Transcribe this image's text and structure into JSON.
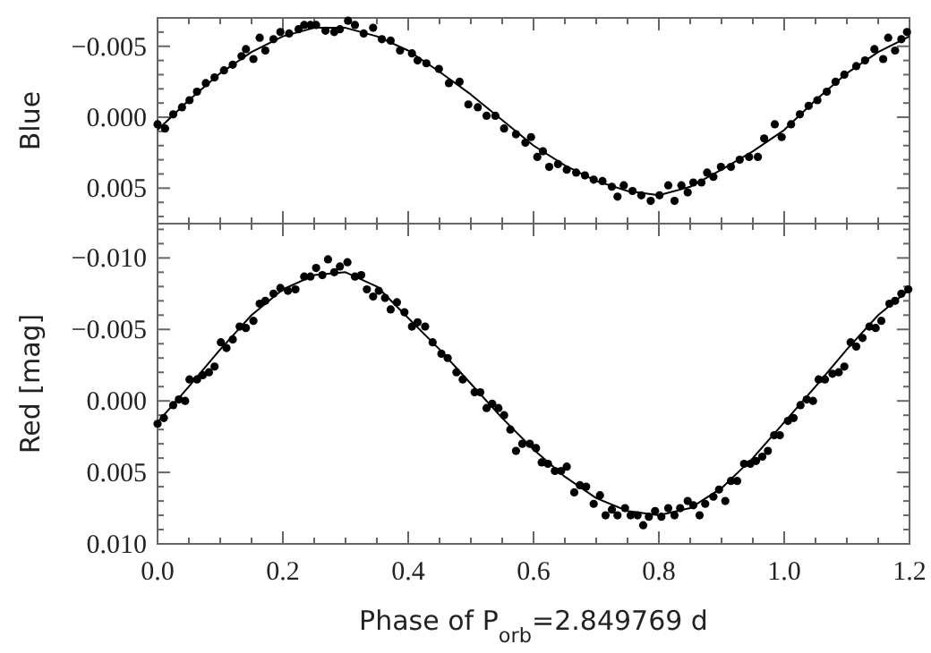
{
  "chart_data": [
    {
      "type": "scatter",
      "ylabel": "Blue",
      "tick_labels": "y",
      "marker": "circle",
      "grid": false,
      "xlim": [
        0,
        1.2
      ],
      "ylim": [
        0.0075,
        -0.007
      ],
      "xticks": [
        0,
        {
          "value": 0.05,
          "label": null
        },
        {
          "value": 0.1,
          "label": null
        },
        {
          "value": 0.15,
          "label": null
        },
        0.2,
        {
          "value": 0.25,
          "label": null
        },
        {
          "value": 0.3,
          "label": null
        },
        {
          "value": 0.35,
          "label": null
        },
        0.4,
        {
          "value": 0.45,
          "label": null
        },
        {
          "value": 0.5,
          "label": null
        },
        {
          "value": 0.55,
          "label": null
        },
        0.6,
        {
          "value": 0.65,
          "label": null
        },
        {
          "value": 0.7,
          "label": null
        },
        {
          "value": 0.75,
          "label": null
        },
        0.8,
        {
          "value": 0.85,
          "label": null
        },
        {
          "value": 0.9,
          "label": null
        },
        {
          "value": 0.95,
          "label": null
        },
        1.0,
        {
          "value": 1.05,
          "label": null
        },
        {
          "value": 1.1,
          "label": null
        },
        {
          "value": 1.15,
          "label": null
        },
        1.2
      ],
      "yticks": [
        {
          "value": -0.007,
          "label": null
        },
        {
          "value": -0.006,
          "label": null
        },
        {
          "value": -0.005,
          "label": "−0.005"
        },
        {
          "value": -0.004,
          "label": null
        },
        {
          "value": -0.003,
          "label": null
        },
        {
          "value": -0.002,
          "label": null
        },
        {
          "value": -0.001,
          "label": null
        },
        {
          "value": 0,
          "label": "0.000"
        },
        {
          "value": 0.001,
          "label": null
        },
        {
          "value": 0.002,
          "label": null
        },
        {
          "value": 0.003,
          "label": null
        },
        {
          "value": 0.004,
          "label": null
        },
        {
          "value": 0.005,
          "label": "0.005"
        },
        {
          "value": 0.006,
          "label": null
        },
        {
          "value": 0.007,
          "label": null
        }
      ],
      "series": [
        {
          "color": "#000000",
          "x": [
            0.0,
            0.012,
            0.025,
            0.039,
            0.051,
            0.063,
            0.077,
            0.091,
            0.106,
            0.12,
            0.134,
            0.141,
            0.153,
            0.163,
            0.172,
            0.185,
            0.196,
            0.21,
            0.225,
            0.234,
            0.244,
            0.253,
            0.268,
            0.282,
            0.291,
            0.304,
            0.315,
            0.329,
            0.344,
            0.358,
            0.372,
            0.387,
            0.406,
            0.415,
            0.429,
            0.449,
            0.465,
            0.482,
            0.496,
            0.511,
            0.525,
            0.539,
            0.553,
            0.572,
            0.587,
            0.596,
            0.606,
            0.615,
            0.625,
            0.639,
            0.653,
            0.668,
            0.682,
            0.696,
            0.71,
            0.725,
            0.734,
            0.744,
            0.758,
            0.772,
            0.787,
            0.801,
            0.815,
            0.825,
            0.836,
            0.846,
            0.855,
            0.868,
            0.877,
            0.887,
            0.899,
            0.915,
            0.929,
            0.944,
            0.958,
            0.968,
            0.985,
            0.996,
            1.011,
            1.025,
            1.039,
            1.053,
            1.068,
            1.082,
            1.096,
            1.115,
            1.129,
            1.144,
            1.158,
            1.166,
            1.177,
            1.187,
            1.196
          ],
          "values": [
            0.0005,
            0.0008,
            -0.0002,
            -0.0007,
            -0.0012,
            -0.0018,
            -0.0024,
            -0.0028,
            -0.0033,
            -0.0037,
            -0.0043,
            -0.0048,
            -0.0041,
            -0.0056,
            -0.0047,
            -0.0055,
            -0.006,
            -0.0059,
            -0.0062,
            -0.0065,
            -0.0065,
            -0.0065,
            -0.0061,
            -0.006,
            -0.0062,
            -0.0068,
            -0.0065,
            -0.0059,
            -0.0063,
            -0.0055,
            -0.0054,
            -0.0047,
            -0.0045,
            -0.004,
            -0.0038,
            -0.0034,
            -0.0024,
            -0.0025,
            -0.0009,
            -0.0007,
            -0.0001,
            -0.0001,
            0.0008,
            0.0012,
            0.0018,
            0.0014,
            0.0028,
            0.0024,
            0.0035,
            0.0033,
            0.0037,
            0.0039,
            0.0041,
            0.0044,
            0.0045,
            0.0049,
            0.0056,
            0.0048,
            0.0052,
            0.0055,
            0.0059,
            0.0055,
            0.0048,
            0.0059,
            0.0048,
            0.0053,
            0.0046,
            0.0046,
            0.0039,
            0.0042,
            0.0035,
            0.0035,
            0.003,
            0.0028,
            0.0028,
            0.0015,
            0.0005,
            0.0014,
            0.0005,
            -0.0002,
            -0.0008,
            -0.0012,
            -0.0018,
            -0.0025,
            -0.003,
            -0.0036,
            -0.004,
            -0.0048,
            -0.0041,
            -0.0056,
            -0.0047,
            -0.0055,
            -0.006
          ]
        },
        {
          "type": "line",
          "color": "#000000",
          "marker": "none",
          "line_style": "solid",
          "x": [
            0,
            0.05,
            0.1,
            0.15,
            0.2,
            0.25,
            0.3,
            0.35,
            0.4,
            0.45,
            0.5,
            0.55,
            0.6,
            0.65,
            0.7,
            0.75,
            0.8,
            0.85,
            0.9,
            0.95,
            1.0,
            1.05,
            1.1,
            1.15,
            1.2
          ],
          "values": [
            0.0009,
            -0.0012,
            -0.0031,
            -0.0046,
            -0.0057,
            -0.0063,
            -0.0063,
            -0.0057,
            -0.0047,
            -0.0032,
            -0.0016,
            0.0002,
            0.002,
            0.0034,
            0.0045,
            0.0052,
            0.0055,
            0.0049,
            0.0037,
            0.0024,
            0.0009,
            -0.0012,
            -0.0031,
            -0.0046,
            -0.0057
          ]
        }
      ]
    },
    {
      "type": "scatter",
      "ylabel": "Red    [mag]",
      "xlabel": "Phase of P$_{orb}$=2.849769 d",
      "marker": "circle",
      "grid": false,
      "xlim": [
        0,
        1.2
      ],
      "ylim": [
        0.01,
        -0.0124
      ],
      "xticks": [
        {
          "value": 0,
          "label": "0.0"
        },
        {
          "value": 0.05,
          "label": null
        },
        {
          "value": 0.1,
          "label": null
        },
        {
          "value": 0.15,
          "label": null
        },
        {
          "value": 0.2,
          "label": "0.2"
        },
        {
          "value": 0.25,
          "label": null
        },
        {
          "value": 0.3,
          "label": null
        },
        {
          "value": 0.35,
          "label": null
        },
        {
          "value": 0.4,
          "label": "0.4"
        },
        {
          "value": 0.45,
          "label": null
        },
        {
          "value": 0.5,
          "label": null
        },
        {
          "value": 0.55,
          "label": null
        },
        {
          "value": 0.6,
          "label": "0.6"
        },
        {
          "value": 0.65,
          "label": null
        },
        {
          "value": 0.7,
          "label": null
        },
        {
          "value": 0.75,
          "label": null
        },
        {
          "value": 0.8,
          "label": "0.8"
        },
        {
          "value": 0.85,
          "label": null
        },
        {
          "value": 0.9,
          "label": null
        },
        {
          "value": 0.95,
          "label": null
        },
        {
          "value": 1.0,
          "label": "1.0"
        },
        {
          "value": 1.05,
          "label": null
        },
        {
          "value": 1.1,
          "label": null
        },
        {
          "value": 1.15,
          "label": null
        },
        {
          "value": 1.2,
          "label": "1.2"
        }
      ],
      "yticks": [
        {
          "value": -0.012,
          "label": null
        },
        {
          "value": -0.011,
          "label": null
        },
        {
          "value": -0.01,
          "label": "−0.010"
        },
        {
          "value": -0.009,
          "label": null
        },
        {
          "value": -0.008,
          "label": null
        },
        {
          "value": -0.007,
          "label": null
        },
        {
          "value": -0.006,
          "label": null
        },
        {
          "value": -0.005,
          "label": "−0.005"
        },
        {
          "value": -0.004,
          "label": null
        },
        {
          "value": -0.003,
          "label": null
        },
        {
          "value": -0.002,
          "label": null
        },
        {
          "value": -0.001,
          "label": null
        },
        {
          "value": 0,
          "label": "0.000"
        },
        {
          "value": 0.001,
          "label": null
        },
        {
          "value": 0.002,
          "label": null
        },
        {
          "value": 0.003,
          "label": null
        },
        {
          "value": 0.004,
          "label": null
        },
        {
          "value": 0.005,
          "label": "0.005"
        },
        {
          "value": 0.006,
          "label": null
        },
        {
          "value": 0.007,
          "label": null
        },
        {
          "value": 0.008,
          "label": null
        },
        {
          "value": 0.009,
          "label": null
        },
        {
          "value": 0.01,
          "label": "0.010"
        }
      ],
      "series": [
        {
          "color": "#000000",
          "x": [
            0.0,
            0.01,
            0.025,
            0.034,
            0.044,
            0.051,
            0.063,
            0.072,
            0.082,
            0.091,
            0.101,
            0.11,
            0.12,
            0.131,
            0.141,
            0.153,
            0.163,
            0.172,
            0.185,
            0.196,
            0.208,
            0.22,
            0.234,
            0.244,
            0.253,
            0.263,
            0.272,
            0.282,
            0.291,
            0.303,
            0.315,
            0.325,
            0.334,
            0.344,
            0.353,
            0.363,
            0.372,
            0.382,
            0.394,
            0.406,
            0.415,
            0.427,
            0.439,
            0.453,
            0.463,
            0.477,
            0.487,
            0.506,
            0.515,
            0.525,
            0.534,
            0.544,
            0.553,
            0.563,
            0.572,
            0.582,
            0.594,
            0.604,
            0.613,
            0.623,
            0.634,
            0.644,
            0.653,
            0.665,
            0.674,
            0.684,
            0.696,
            0.706,
            0.715,
            0.725,
            0.734,
            0.746,
            0.755,
            0.766,
            0.775,
            0.784,
            0.794,
            0.804,
            0.815,
            0.825,
            0.834,
            0.846,
            0.855,
            0.865,
            0.874,
            0.887,
            0.896,
            0.906,
            0.915,
            0.925,
            0.936,
            0.946,
            0.955,
            0.965,
            0.974,
            0.984,
            0.993,
            1.006,
            1.015,
            1.026,
            1.036,
            1.046,
            1.055,
            1.065,
            1.077,
            1.087,
            1.096,
            1.106,
            1.115,
            1.125,
            1.136,
            1.146,
            1.155,
            1.168,
            1.177,
            1.187,
            1.198
          ],
          "values": [
            0.0016,
            0.0012,
            0.0003,
            -0.0001,
            0.0,
            -0.0015,
            -0.0015,
            -0.0018,
            -0.002,
            -0.0024,
            -0.0041,
            -0.0037,
            -0.0043,
            -0.0052,
            -0.0051,
            -0.0056,
            -0.0068,
            -0.007,
            -0.0075,
            -0.0079,
            -0.0077,
            -0.0078,
            -0.0087,
            -0.0087,
            -0.0093,
            -0.0088,
            -0.0099,
            -0.009,
            -0.0094,
            -0.0097,
            -0.0087,
            -0.0088,
            -0.0078,
            -0.0073,
            -0.0077,
            -0.0072,
            -0.0064,
            -0.0069,
            -0.0062,
            -0.0052,
            -0.0055,
            -0.0052,
            -0.0041,
            -0.0033,
            -0.003,
            -0.002,
            -0.0015,
            -0.0006,
            -0.0006,
            0.0005,
            0.0002,
            0.0005,
            0.001,
            0.002,
            0.0035,
            0.003,
            0.003,
            0.0033,
            0.0043,
            0.0044,
            0.0049,
            0.0049,
            0.0046,
            0.0064,
            0.0059,
            0.006,
            0.0072,
            0.0066,
            0.008,
            0.0076,
            0.008,
            0.0075,
            0.008,
            0.008,
            0.0087,
            0.0081,
            0.0077,
            0.0081,
            0.0075,
            0.008,
            0.0075,
            0.007,
            0.0073,
            0.008,
            0.0072,
            0.0067,
            0.0062,
            0.007,
            0.0056,
            0.0056,
            0.0044,
            0.0044,
            0.0042,
            0.0039,
            0.0035,
            0.0024,
            0.0024,
            0.0014,
            0.0012,
            0.0003,
            -0.0001,
            0.0,
            -0.0015,
            -0.0015,
            -0.0019,
            -0.002,
            -0.0024,
            -0.0041,
            -0.0038,
            -0.0044,
            -0.0052,
            -0.0051,
            -0.0056,
            -0.0068,
            -0.007,
            -0.0075,
            -0.0078
          ]
        },
        {
          "type": "line",
          "color": "#000000",
          "marker": "none",
          "line_style": "solid",
          "x": [
            0,
            0.05,
            0.1,
            0.15,
            0.2,
            0.25,
            0.3,
            0.35,
            0.4,
            0.45,
            0.5,
            0.55,
            0.6,
            0.65,
            0.7,
            0.75,
            0.8,
            0.85,
            0.9,
            0.95,
            1.0,
            1.05,
            1.1,
            1.15,
            1.2
          ],
          "values": [
            0.0015,
            -0.001,
            -0.0036,
            -0.006,
            -0.0078,
            -0.0088,
            -0.009,
            -0.008,
            -0.0058,
            -0.0036,
            -0.0012,
            0.0012,
            0.0034,
            0.0053,
            0.0068,
            0.0077,
            0.008,
            0.0075,
            0.0061,
            0.004,
            0.0015,
            -0.001,
            -0.0036,
            -0.006,
            -0.0078
          ]
        }
      ]
    }
  ]
}
